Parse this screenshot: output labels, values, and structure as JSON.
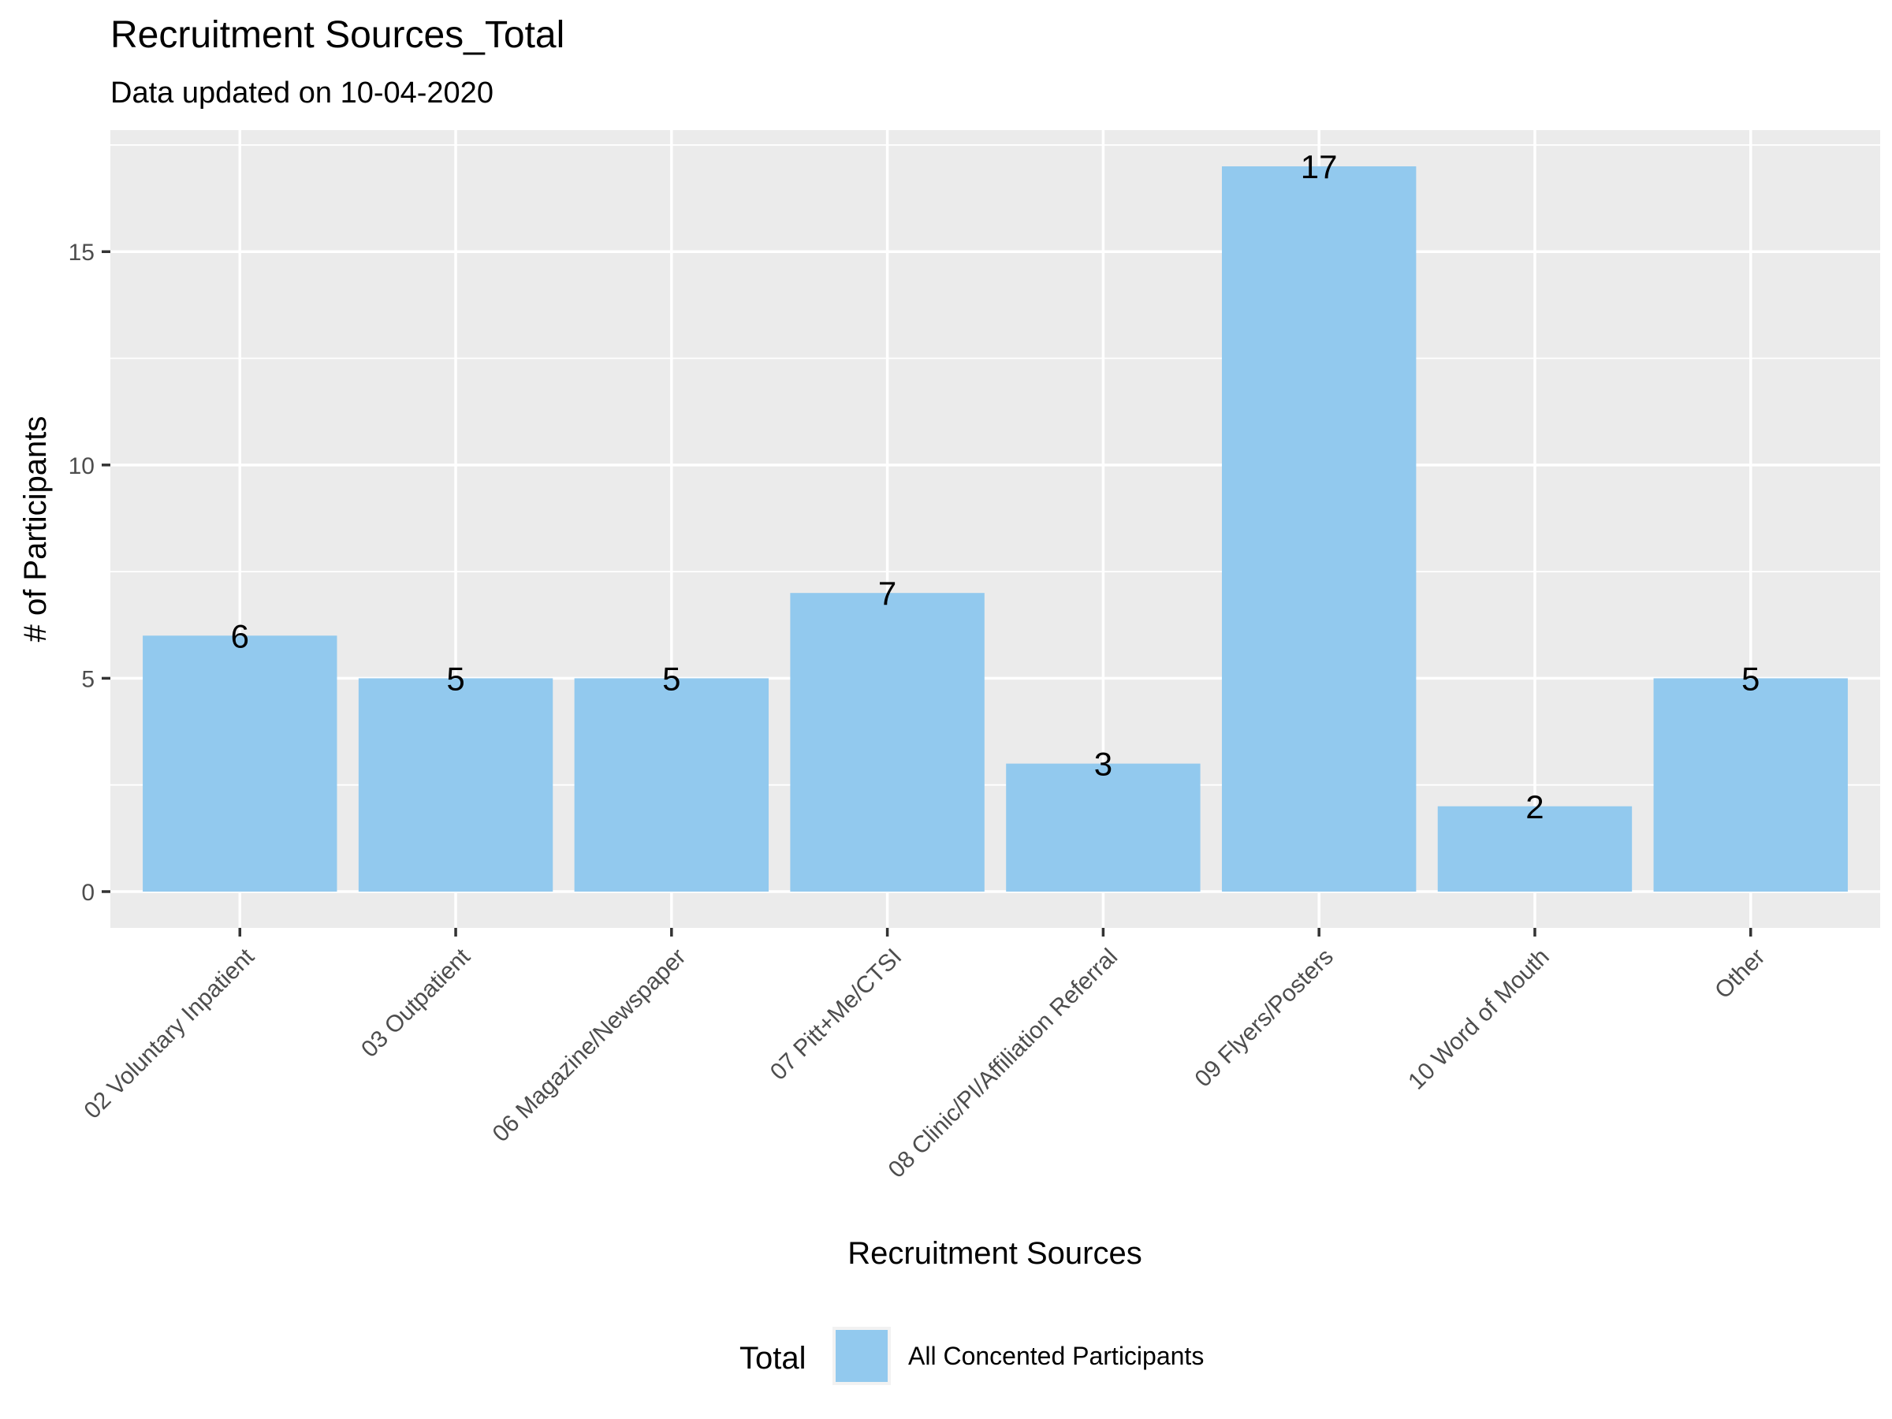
{
  "chart_data": {
    "type": "bar",
    "title": "Recruitment Sources_Total",
    "subtitle": "Data updated on 10-04-2020",
    "xlabel": "Recruitment Sources",
    "ylabel": "# of Participants",
    "categories": [
      "02 Voluntary Inpatient",
      "03 Outpatient",
      "06 Magazine/Newspaper",
      "07 Pitt+Me/CTSI",
      "08 Clinic/PI/Affiliation Referral",
      "09 Flyers/Posters",
      "10 Word of Mouth",
      "Other"
    ],
    "series": [
      {
        "name": "All Concented Participants",
        "values": [
          6,
          5,
          5,
          7,
          3,
          17,
          2,
          5
        ],
        "color": "#92c9ee"
      }
    ],
    "data_labels": [
      "6",
      "5",
      "5",
      "7",
      "3",
      "17",
      "2",
      "5"
    ],
    "ylim": [
      -0.85,
      17.85
    ],
    "yticks": [
      0,
      5,
      10,
      15
    ],
    "ytick_labels": [
      "0",
      "5",
      "10",
      "15"
    ],
    "grid": true,
    "panel_background": "#ebebeb",
    "gridline_color": "#ffffff",
    "legend": {
      "title": "Total",
      "position": "bottom",
      "entries": [
        "All Concented Participants"
      ]
    }
  }
}
